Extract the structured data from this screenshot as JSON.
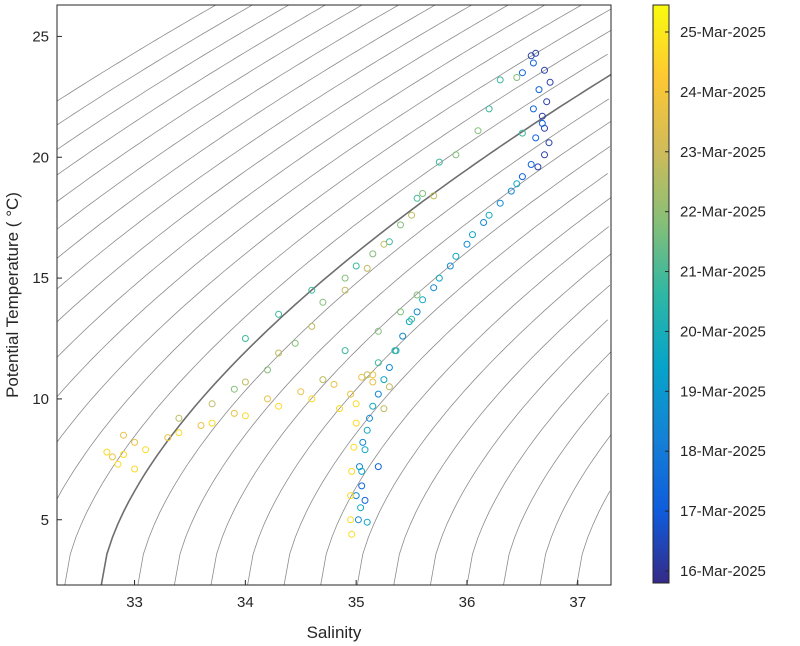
{
  "chart_data": {
    "type": "scatter",
    "title": "",
    "xlabel": "Salinity",
    "ylabel": "Potential Temperature ( °C)",
    "xlim": [
      32.3,
      37.3
    ],
    "ylim": [
      2.3,
      26.3
    ],
    "x_ticks": [
      33,
      34,
      35,
      36,
      37
    ],
    "y_ticks": [
      5,
      10,
      15,
      20,
      25
    ],
    "grid": false,
    "density_contours": true,
    "highlighted_contour": "darker grey isopycnal passing near (32.7, 2.3) and (37.3, 22)",
    "marker": "open circle",
    "colormap": "parula",
    "colorbar": {
      "location": "right",
      "range_days": [
        "15-Mar-2025 (approx)",
        "25-Mar-2025 (approx)"
      ],
      "tick_labels": [
        "16-Mar-2025",
        "17-Mar-2025",
        "18-Mar-2025",
        "19-Mar-2025",
        "20-Mar-2025",
        "21-Mar-2025",
        "22-Mar-2025",
        "23-Mar-2025",
        "24-Mar-2025",
        "25-Mar-2025"
      ],
      "colors": [
        "#352a87",
        "#0f5cdd",
        "#1481d6",
        "#06a4ca",
        "#2eb7a4",
        "#87bf77",
        "#d1bb59",
        "#fec832",
        "#f9fb0e"
      ]
    },
    "series": [
      {
        "description_of_date": "16-17 Mar",
        "t": 0.05,
        "points": [
          [
            36.58,
            24.2
          ],
          [
            36.62,
            24.3
          ],
          [
            36.7,
            23.6
          ],
          [
            36.75,
            23.1
          ],
          [
            36.72,
            22.3
          ],
          [
            36.68,
            21.7
          ],
          [
            36.7,
            21.2
          ],
          [
            36.74,
            20.6
          ],
          [
            36.7,
            20.1
          ],
          [
            36.64,
            19.6
          ]
        ]
      },
      {
        "description_of_date": "17-18 Mar",
        "t": 0.15,
        "points": [
          [
            36.6,
            23.9
          ],
          [
            36.5,
            23.5
          ],
          [
            36.65,
            22.8
          ],
          [
            36.6,
            22.0
          ],
          [
            36.68,
            21.4
          ],
          [
            36.62,
            20.8
          ],
          [
            36.58,
            19.7
          ],
          [
            36.5,
            19.2
          ],
          [
            35.2,
            7.2
          ],
          [
            35.05,
            6.4
          ],
          [
            35.08,
            5.8
          ]
        ]
      },
      {
        "description_of_date": "18-19 Mar",
        "t": 0.28,
        "points": [
          [
            36.4,
            18.6
          ],
          [
            36.3,
            18.1
          ],
          [
            36.15,
            17.3
          ],
          [
            36.0,
            16.4
          ],
          [
            35.85,
            15.5
          ],
          [
            35.7,
            14.6
          ],
          [
            35.55,
            13.6
          ],
          [
            35.42,
            12.6
          ],
          [
            35.3,
            11.3
          ],
          [
            35.2,
            10.2
          ],
          [
            35.12,
            9.2
          ],
          [
            35.06,
            8.2
          ],
          [
            35.03,
            7.2
          ],
          [
            35.0,
            6.0
          ],
          [
            35.02,
            5.0
          ]
        ]
      },
      {
        "description_of_date": "19-20 Mar",
        "t": 0.4,
        "points": [
          [
            36.45,
            18.9
          ],
          [
            36.2,
            17.6
          ],
          [
            36.05,
            16.8
          ],
          [
            35.9,
            15.9
          ],
          [
            35.75,
            15.0
          ],
          [
            35.6,
            14.1
          ],
          [
            35.48,
            13.2
          ],
          [
            35.36,
            12.0
          ],
          [
            35.25,
            10.8
          ],
          [
            35.15,
            9.7
          ],
          [
            35.1,
            8.7
          ],
          [
            35.08,
            7.9
          ],
          [
            35.05,
            7.0
          ],
          [
            35.04,
            5.5
          ],
          [
            35.1,
            4.9
          ]
        ]
      },
      {
        "description_of_date": "20-21 Mar",
        "t": 0.52,
        "points": [
          [
            36.3,
            23.2
          ],
          [
            36.2,
            22.0
          ],
          [
            36.5,
            21.0
          ],
          [
            35.75,
            19.8
          ],
          [
            35.55,
            18.3
          ],
          [
            35.3,
            16.5
          ],
          [
            35.0,
            15.5
          ],
          [
            34.6,
            14.5
          ],
          [
            34.3,
            13.5
          ],
          [
            34.0,
            12.5
          ],
          [
            34.9,
            12.0
          ],
          [
            35.2,
            11.5
          ],
          [
            35.35,
            12.0
          ],
          [
            35.5,
            13.3
          ]
        ]
      },
      {
        "description_of_date": "21-22 Mar",
        "t": 0.62,
        "points": [
          [
            36.45,
            23.3
          ],
          [
            36.1,
            21.1
          ],
          [
            35.9,
            20.1
          ],
          [
            35.6,
            18.5
          ],
          [
            35.4,
            17.2
          ],
          [
            35.15,
            16.0
          ],
          [
            34.9,
            15.0
          ],
          [
            34.7,
            14.0
          ],
          [
            34.45,
            12.3
          ],
          [
            34.2,
            11.2
          ],
          [
            33.9,
            10.4
          ],
          [
            35.2,
            12.8
          ],
          [
            35.4,
            13.6
          ],
          [
            35.55,
            14.3
          ]
        ]
      },
      {
        "description_of_date": "22-23 Mar",
        "t": 0.72,
        "points": [
          [
            35.7,
            18.4
          ],
          [
            35.5,
            17.6
          ],
          [
            35.25,
            16.4
          ],
          [
            35.1,
            15.4
          ],
          [
            34.9,
            14.5
          ],
          [
            34.6,
            13.0
          ],
          [
            34.3,
            11.9
          ],
          [
            34.0,
            10.7
          ],
          [
            33.7,
            9.8
          ],
          [
            33.4,
            9.2
          ],
          [
            34.7,
            10.8
          ],
          [
            35.1,
            11.0
          ],
          [
            35.3,
            10.5
          ],
          [
            35.25,
            9.6
          ]
        ]
      },
      {
        "description_of_date": "23-24 Mar",
        "t": 0.82,
        "points": [
          [
            34.8,
            10.6
          ],
          [
            34.5,
            10.3
          ],
          [
            34.2,
            10.0
          ],
          [
            33.9,
            9.4
          ],
          [
            33.6,
            8.9
          ],
          [
            33.3,
            8.4
          ],
          [
            33.0,
            8.2
          ],
          [
            32.9,
            8.5
          ],
          [
            32.8,
            7.6
          ],
          [
            35.05,
            10.9
          ],
          [
            35.15,
            10.7
          ],
          [
            34.95,
            10.2
          ],
          [
            35.15,
            11.0
          ]
        ]
      },
      {
        "description_of_date": "24-25 Mar",
        "t": 0.92,
        "points": [
          [
            35.0,
            9.8
          ],
          [
            34.85,
            9.6
          ],
          [
            34.6,
            10.0
          ],
          [
            34.3,
            9.7
          ],
          [
            34.0,
            9.3
          ],
          [
            33.7,
            9.0
          ],
          [
            33.4,
            8.6
          ],
          [
            33.1,
            7.9
          ],
          [
            32.85,
            7.3
          ],
          [
            32.75,
            7.8
          ],
          [
            33.0,
            7.1
          ],
          [
            32.9,
            7.7
          ],
          [
            35.0,
            9.0
          ],
          [
            34.98,
            8.0
          ],
          [
            34.96,
            7.0
          ],
          [
            34.95,
            6.0
          ],
          [
            34.95,
            5.0
          ],
          [
            34.96,
            4.4
          ]
        ]
      }
    ]
  }
}
